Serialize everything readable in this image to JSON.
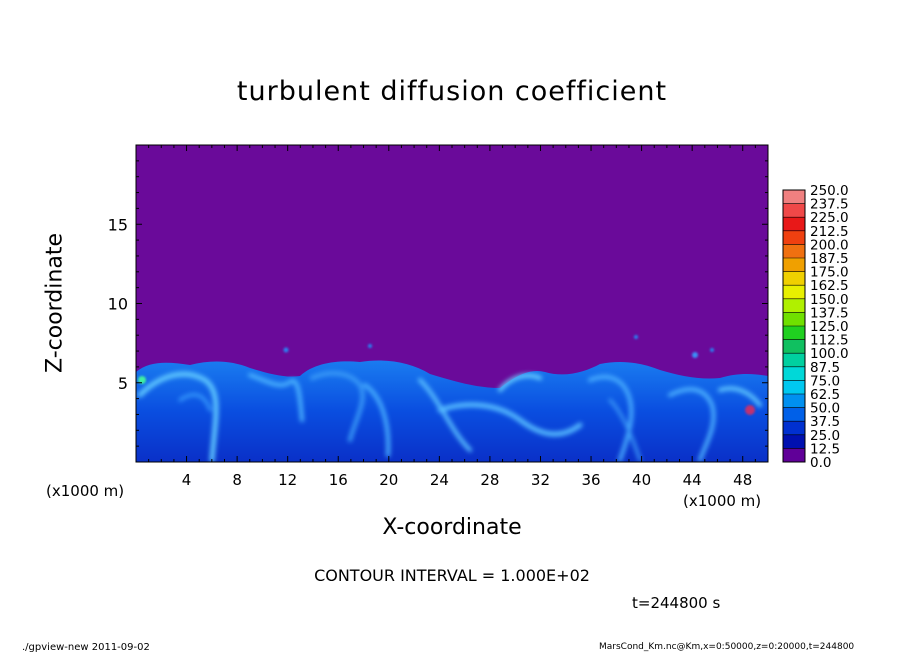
{
  "chart_data": {
    "type": "heatmap",
    "title": "turbulent diffusion coefficient",
    "xlabel": "X-coordinate",
    "ylabel": "Z-coordinate",
    "x_unit_left": "(x1000 m)",
    "x_unit_right": "(x1000 m)",
    "xlim": [
      0,
      50
    ],
    "ylim": [
      0,
      20
    ],
    "x_ticks": [
      "4",
      "8",
      "12",
      "16",
      "20",
      "24",
      "28",
      "32",
      "36",
      "40",
      "44",
      "48"
    ],
    "x_tick_values": [
      4,
      8,
      12,
      16,
      20,
      24,
      28,
      32,
      36,
      40,
      44,
      48
    ],
    "y_ticks": [
      "5",
      "10",
      "15"
    ],
    "y_tick_values": [
      5,
      10,
      15
    ],
    "colorbar": {
      "labels": [
        "250.0",
        "237.5",
        "225.0",
        "212.5",
        "200.0",
        "187.5",
        "175.0",
        "162.5",
        "150.0",
        "137.5",
        "125.0",
        "112.5",
        "100.0",
        "87.5",
        "75.0",
        "62.5",
        "50.0",
        "37.5",
        "25.0",
        "12.5",
        "0.0"
      ],
      "colors": [
        "#f08080",
        "#f04848",
        "#e81818",
        "#f04010",
        "#f07010",
        "#f0a000",
        "#f0d000",
        "#e8f000",
        "#b0f000",
        "#70e000",
        "#20d020",
        "#10c060",
        "#00d0a0",
        "#00d8d8",
        "#00c8f0",
        "#0090f0",
        "#0060e8",
        "#0030d0",
        "#0010b0",
        "#600098"
      ]
    },
    "background_color": "#6a0a9a",
    "contour_interval": "CONTOUR INTERVAL = 1.000E+02",
    "time": "t=244800 s",
    "footer_left": "./gpview-new 2011-09-02",
    "footer_right": "MarsCond_Km.nc@Km,x=0:50000,z=0:20000,t=244800"
  }
}
